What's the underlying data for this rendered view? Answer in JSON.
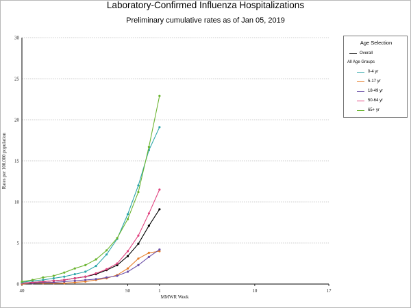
{
  "chart_data": {
    "type": "line",
    "title": "Laboratory-Confirmed Influenza Hospitalizations",
    "subtitle": "Preliminary cumulative rates as of Jan 05, 2019",
    "xlabel": "MMWR Week",
    "ylabel": "Rates per 100,000 population",
    "x_tick_labels": [
      "40",
      "50",
      "1",
      "10",
      "17"
    ],
    "ylim": [
      0,
      30
    ],
    "y_ticks": [
      0,
      5,
      10,
      15,
      20,
      25,
      30
    ],
    "grid": "horizontal dashed",
    "legend_position": "right",
    "legend_title": "Age Selection",
    "legend_group_label": "All Age Groups",
    "x_week_sequence": [
      "40",
      "41",
      "42",
      "43",
      "44",
      "45",
      "46",
      "47",
      "48",
      "49",
      "50",
      "51",
      "52",
      "1"
    ],
    "series": [
      {
        "name": "Overall",
        "color": "#000000",
        "values": [
          0.1,
          0.2,
          0.3,
          0.4,
          0.5,
          0.7,
          0.9,
          1.2,
          1.7,
          2.3,
          3.4,
          4.9,
          7.1,
          9.1
        ]
      },
      {
        "name": "0-4 yr",
        "color": "#2aa5a8",
        "values": [
          0.2,
          0.4,
          0.5,
          0.7,
          0.9,
          1.2,
          1.5,
          2.2,
          3.6,
          5.5,
          8.5,
          12.0,
          16.3,
          19.1
        ]
      },
      {
        "name": "5-17 yr",
        "color": "#e57b26",
        "values": [
          0.0,
          0.1,
          0.1,
          0.1,
          0.1,
          0.2,
          0.3,
          0.5,
          0.7,
          1.1,
          1.9,
          3.1,
          3.8,
          4.0
        ]
      },
      {
        "name": "18-49 yr",
        "color": "#6b4fa7",
        "values": [
          0.1,
          0.1,
          0.2,
          0.2,
          0.3,
          0.4,
          0.5,
          0.6,
          0.8,
          1.0,
          1.5,
          2.3,
          3.3,
          4.2
        ]
      },
      {
        "name": "50-64 yr",
        "color": "#e0427f",
        "values": [
          0.1,
          0.2,
          0.3,
          0.4,
          0.5,
          0.7,
          0.9,
          1.3,
          1.8,
          2.5,
          4.0,
          5.9,
          8.6,
          11.5
        ]
      },
      {
        "name": "65+ yr",
        "color": "#6ab42f",
        "values": [
          0.3,
          0.5,
          0.8,
          1.0,
          1.4,
          1.9,
          2.3,
          3.0,
          4.1,
          5.6,
          7.9,
          11.2,
          16.7,
          22.9
        ]
      }
    ]
  }
}
